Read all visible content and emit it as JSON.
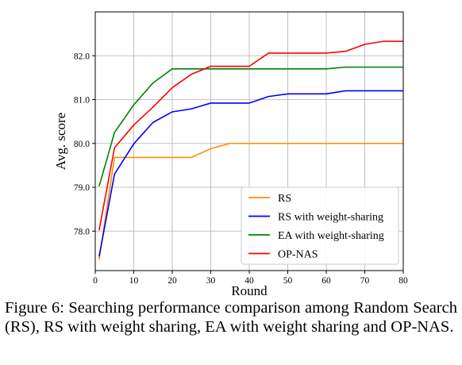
{
  "chart_data": {
    "type": "line",
    "title": "",
    "xlabel": "Round",
    "ylabel": "Avg. score",
    "xlim": [
      0,
      80
    ],
    "ylim": [
      77.1,
      83.0
    ],
    "xticks": [
      0,
      10,
      20,
      30,
      40,
      50,
      60,
      70,
      80
    ],
    "yticks": [
      78.0,
      79.0,
      80.0,
      81.0,
      82.0
    ],
    "grid": true,
    "legend_position": "bottom-right",
    "series": [
      {
        "name": "RS",
        "color": "#ff8c00",
        "x": [
          1,
          5,
          10,
          15,
          20,
          25,
          30,
          35,
          40,
          45,
          50,
          55,
          60,
          65,
          70,
          75,
          80
        ],
        "y": [
          77.35,
          79.68,
          79.68,
          79.68,
          79.68,
          79.68,
          79.88,
          80.0,
          80.0,
          80.0,
          80.0,
          80.0,
          80.0,
          80.0,
          80.0,
          80.0,
          80.0
        ]
      },
      {
        "name": "RS with weight-sharing",
        "color": "#0000ff",
        "x": [
          1,
          5,
          10,
          15,
          20,
          25,
          30,
          35,
          40,
          45,
          50,
          55,
          60,
          65,
          70,
          75,
          80
        ],
        "y": [
          77.42,
          79.3,
          79.99,
          80.48,
          80.72,
          80.79,
          80.92,
          80.92,
          80.92,
          81.07,
          81.13,
          81.13,
          81.13,
          81.2,
          81.2,
          81.2,
          81.2
        ]
      },
      {
        "name": "EA with weight-sharing",
        "color": "#008000",
        "x": [
          1,
          5,
          10,
          15,
          20,
          25,
          30,
          35,
          40,
          45,
          50,
          55,
          60,
          65,
          70,
          75,
          80
        ],
        "y": [
          79.02,
          80.25,
          80.88,
          81.38,
          81.7,
          81.7,
          81.7,
          81.7,
          81.7,
          81.7,
          81.7,
          81.7,
          81.7,
          81.74,
          81.74,
          81.74,
          81.74
        ]
      },
      {
        "name": "OP-NAS",
        "color": "#ff0000",
        "x": [
          1,
          5,
          10,
          15,
          20,
          25,
          30,
          35,
          40,
          45,
          50,
          55,
          60,
          65,
          70,
          75,
          80
        ],
        "y": [
          78.02,
          79.9,
          80.42,
          80.83,
          81.27,
          81.58,
          81.76,
          81.76,
          81.76,
          82.06,
          82.06,
          82.06,
          82.06,
          82.1,
          82.26,
          82.33,
          82.33
        ]
      }
    ]
  },
  "caption": "Figure 6: Searching performance comparison among Random Search (RS), RS with weight sharing, EA with weight sharing and OP-NAS."
}
